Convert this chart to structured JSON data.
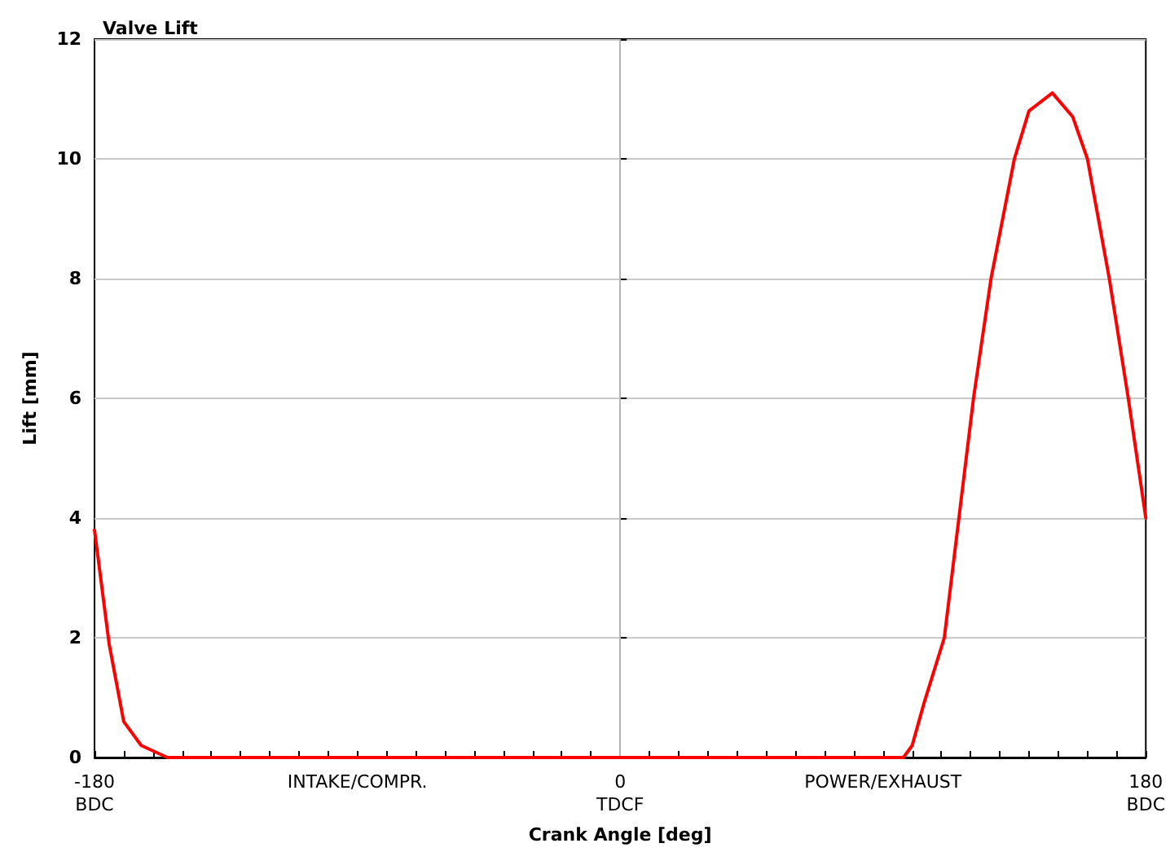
{
  "chart_data": {
    "type": "line",
    "title": "Valve Lift",
    "xlabel": "Crank Angle [deg]",
    "ylabel": "Lift [mm]",
    "x": [
      -180,
      -175,
      -170,
      -164,
      -155,
      97,
      100,
      104,
      111,
      116,
      121,
      127,
      135,
      140,
      148,
      155,
      160,
      167.5,
      174,
      180
    ],
    "series": [
      {
        "color": "#ff0000",
        "values": [
          3.8,
          1.9,
          0.6,
          0.2,
          0,
          0,
          0.2,
          0.9,
          2.0,
          4.0,
          6.0,
          8.0,
          10.0,
          10.8,
          11.1,
          10.7,
          10.0,
          8.0,
          6.0,
          4.0
        ]
      }
    ],
    "xlim": [
      -180,
      180
    ],
    "ylim": [
      0,
      12
    ],
    "yticks": [
      0,
      2,
      4,
      6,
      8,
      10,
      12
    ],
    "xticks": [
      {
        "value": -180,
        "label": "-180\nBDC"
      },
      {
        "value": -170,
        "label": null
      },
      {
        "value": -160,
        "label": null
      },
      {
        "value": -150,
        "label": null
      },
      {
        "value": -140,
        "label": null
      },
      {
        "value": -130,
        "label": null
      },
      {
        "value": -120,
        "label": null
      },
      {
        "value": -110,
        "label": null
      },
      {
        "value": -100,
        "label": null
      },
      {
        "value": -90,
        "label": "INTAKE/COMPR."
      },
      {
        "value": -80,
        "label": null
      },
      {
        "value": -70,
        "label": null
      },
      {
        "value": -60,
        "label": null
      },
      {
        "value": -50,
        "label": null
      },
      {
        "value": -40,
        "label": null
      },
      {
        "value": -30,
        "label": null
      },
      {
        "value": -20,
        "label": null
      },
      {
        "value": -10,
        "label": null
      },
      {
        "value": 0,
        "label": "0\nTDCF"
      },
      {
        "value": 10,
        "label": null
      },
      {
        "value": 20,
        "label": null
      },
      {
        "value": 30,
        "label": null
      },
      {
        "value": 40,
        "label": null
      },
      {
        "value": 50,
        "label": null
      },
      {
        "value": 60,
        "label": null
      },
      {
        "value": 70,
        "label": null
      },
      {
        "value": 80,
        "label": null
      },
      {
        "value": 90,
        "label": "POWER/EXHAUST"
      },
      {
        "value": 100,
        "label": null
      },
      {
        "value": 110,
        "label": null
      },
      {
        "value": 120,
        "label": null
      },
      {
        "value": 130,
        "label": null
      },
      {
        "value": 140,
        "label": null
      },
      {
        "value": 150,
        "label": null
      },
      {
        "value": 160,
        "label": null
      },
      {
        "value": 170,
        "label": null
      },
      {
        "value": 180,
        "label": "180\nBDC"
      }
    ],
    "grid": "y",
    "marker": "none",
    "line_style": "solid",
    "ref_lines": [
      {
        "axis": "x",
        "value": 0,
        "color": "#b4b4b4",
        "line_style": "solid"
      }
    ]
  }
}
